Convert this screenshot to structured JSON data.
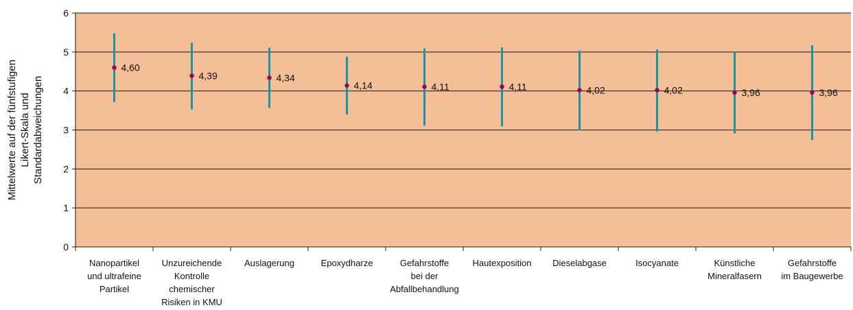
{
  "chart_data": {
    "type": "scatter",
    "title": "",
    "ylabel_lines": [
      "Mittelwerte auf der fünfstufigen",
      "Likert-Skala und",
      "Standardabweichungen"
    ],
    "ylim": [
      0,
      6
    ],
    "yticks": [
      "0",
      "1",
      "2",
      "3",
      "4",
      "5",
      "6"
    ],
    "grid": true,
    "categories": [
      [
        "Nanopartikel",
        "und ultrafeine",
        "Partikel"
      ],
      [
        "Unzureichende",
        "Kontrolle",
        "chemischer",
        "Risiken in KMU"
      ],
      [
        "Auslagerung"
      ],
      [
        "Epoxydharze"
      ],
      [
        "Gefahrstoffe",
        "bei der",
        "Abfallbehandlung"
      ],
      [
        "Hautexposition"
      ],
      [
        "Dieselabgase"
      ],
      [
        "Isocyanate"
      ],
      [
        "Künstliche",
        "Mineralfasern"
      ],
      [
        "Gefahrstoffe",
        "im Baugewerbe"
      ]
    ],
    "series": [
      {
        "values": [
          4.6,
          4.39,
          4.34,
          4.14,
          4.11,
          4.11,
          4.02,
          4.02,
          3.96,
          3.96
        ],
        "labels": [
          "4,60",
          "4,39",
          "4,34",
          "4,14",
          "4,11",
          "4,11",
          "4,02",
          "4,02",
          "3,96",
          "3,96"
        ],
        "error_low": [
          3.72,
          3.53,
          3.57,
          3.4,
          3.11,
          3.09,
          2.99,
          2.96,
          2.91,
          2.74
        ],
        "error_high": [
          5.48,
          5.24,
          5.11,
          4.88,
          5.09,
          5.12,
          5.04,
          5.07,
          5.0,
          5.17
        ]
      }
    ],
    "colors": {
      "plot_background": "#F4BE96",
      "error_bar": "#1A93A3",
      "marker": "#A0004E",
      "gridline": "#1a1a1a"
    }
  }
}
